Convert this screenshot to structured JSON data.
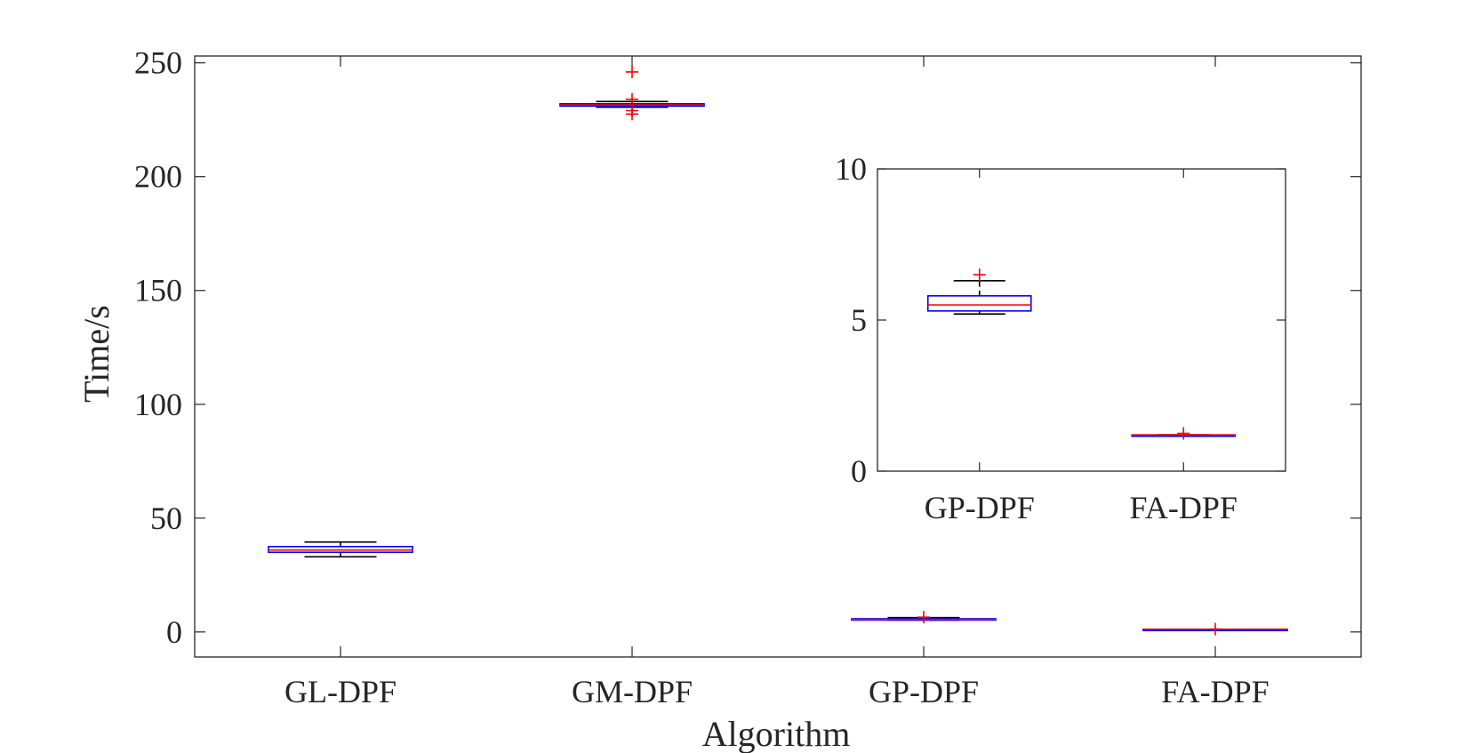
{
  "chart_data": [
    {
      "type": "boxplot",
      "xlabel": "Algorithm",
      "ylabel": "Time/s",
      "ylim": [
        -11,
        253
      ],
      "yticks": [
        0,
        50,
        100,
        150,
        200,
        250
      ],
      "categories": [
        "GL-DPF",
        "GM-DPF",
        "GP-DPF",
        "FA-DPF"
      ],
      "grid": false,
      "legend": "none",
      "box_color": "#0000ff",
      "median_color": "#ff0000",
      "whisker_color": "#000000",
      "outlier_color": "#ff0000",
      "boxes": [
        {
          "name": "GL-DPF",
          "whisker_low": 33,
          "q1": 35,
          "median": 36,
          "q3": 37.5,
          "whisker_high": 39.5,
          "outliers": []
        },
        {
          "name": "GM-DPF",
          "whisker_low": 230.5,
          "q1": 231,
          "median": 231.5,
          "q3": 232,
          "whisker_high": 233,
          "outliers": [
            246,
            234,
            229,
            227.5
          ]
        },
        {
          "name": "GP-DPF",
          "whisker_low": 5.2,
          "q1": 5.3,
          "median": 5.5,
          "q3": 5.8,
          "whisker_high": 6.3,
          "outliers": [
            6.5
          ]
        },
        {
          "name": "FA-DPF",
          "whisker_low": 1.2,
          "q1": 1.2,
          "median": 1.2,
          "q3": 1.2,
          "whisker_high": 1.2,
          "outliers": [
            1.25
          ]
        }
      ]
    },
    {
      "type": "boxplot",
      "role": "inset",
      "xlabel": "",
      "ylabel": "",
      "ylim": [
        0,
        10
      ],
      "yticks": [
        0,
        5,
        10
      ],
      "categories": [
        "GP-DPF",
        "FA-DPF"
      ],
      "grid": false,
      "legend": "none",
      "boxes": [
        {
          "name": "GP-DPF",
          "whisker_low": 5.2,
          "q1": 5.3,
          "median": 5.5,
          "q3": 5.8,
          "whisker_high": 6.3,
          "outliers": [
            6.5
          ]
        },
        {
          "name": "FA-DPF",
          "whisker_low": 1.2,
          "q1": 1.2,
          "median": 1.2,
          "q3": 1.2,
          "whisker_high": 1.2,
          "outliers": [
            1.25
          ]
        }
      ]
    }
  ]
}
